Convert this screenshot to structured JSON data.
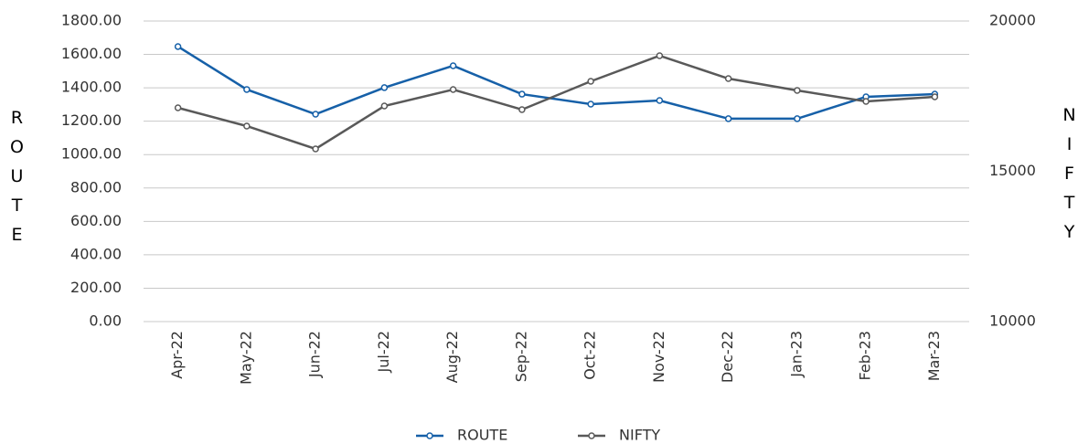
{
  "chart_data": {
    "type": "line",
    "categories": [
      "Apr-22",
      "May-22",
      "Jun-22",
      "Jul-22",
      "Aug-22",
      "Sep-22",
      "Oct-22",
      "Nov-22",
      "Dec-22",
      "Jan-23",
      "Feb-23",
      "Mar-23"
    ],
    "series": [
      {
        "name": "ROUTE",
        "color": "#1660a8",
        "values": [
          1647,
          1390,
          1242,
          1401,
          1532,
          1362,
          1302,
          1324,
          1215,
          1215,
          1346,
          1362
        ]
      },
      {
        "name": "NIFTY",
        "color": "#595959",
        "axis": "y2",
        "values": [
          17112,
          16505,
          15745,
          17173,
          17720,
          17052,
          17994,
          18845,
          18085,
          17690,
          17325,
          17477
        ]
      }
    ],
    "ylabel": "ROUTE",
    "y2label": "NIFTY",
    "ylim": [
      0,
      1800
    ],
    "yticks": [
      {
        "value": 0,
        "label": "0.00"
      },
      {
        "value": 200,
        "label": "200.00"
      },
      {
        "value": 400,
        "label": "400.00"
      },
      {
        "value": 600,
        "label": "600.00"
      },
      {
        "value": 800,
        "label": "800.00"
      },
      {
        "value": 1000,
        "label": "1000.00"
      },
      {
        "value": 1200,
        "label": "1200.00"
      },
      {
        "value": 1400,
        "label": "1400.00"
      },
      {
        "value": 1600,
        "label": "1600.00"
      },
      {
        "value": 1800,
        "label": "1800.00"
      }
    ],
    "y2lim": [
      10000,
      20000
    ],
    "y2ticks": [
      10000,
      15000,
      20000
    ],
    "grid": true,
    "legend": "bottom"
  }
}
